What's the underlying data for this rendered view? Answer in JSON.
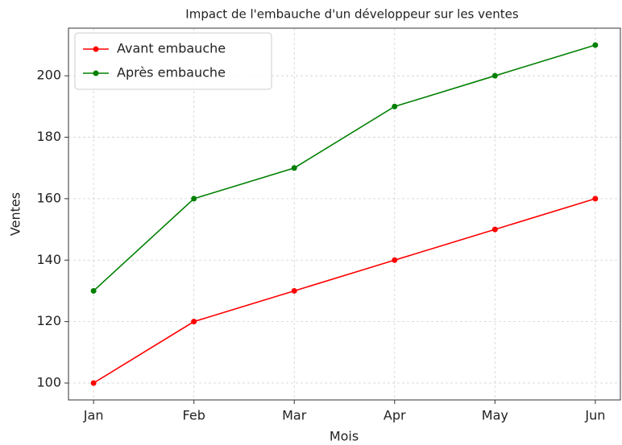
{
  "chart_data": {
    "type": "line",
    "title": "Impact de l'embauche d'un développeur sur les ventes",
    "x_label": "Mois",
    "y_label": "Ventes",
    "categories": [
      "Jan",
      "Feb",
      "Mar",
      "Apr",
      "May",
      "Jun"
    ],
    "series": [
      {
        "name": "Avant embauche",
        "color": "#ff0000",
        "values": [
          100,
          120,
          130,
          140,
          150,
          160
        ]
      },
      {
        "name": "Après embauche",
        "color": "#008000",
        "values": [
          130,
          160,
          170,
          190,
          200,
          210
        ]
      }
    ],
    "ylim": [
      94.5,
      215.5
    ],
    "yticks": [
      100,
      120,
      140,
      160,
      180,
      200
    ],
    "grid": true,
    "legend": "upper left"
  }
}
